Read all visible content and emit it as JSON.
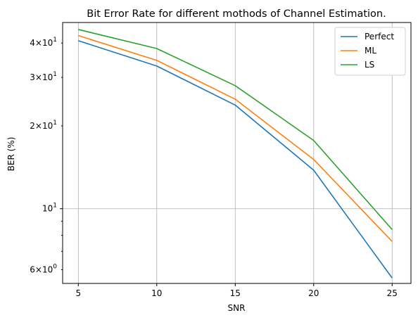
{
  "chart_data": {
    "type": "line",
    "title": "Bit Error Rate for different mothods of Channel Estimation.",
    "xlabel": "SNR",
    "ylabel": "BER (%)",
    "x": [
      5,
      10,
      15,
      20,
      25
    ],
    "xticks": [
      "5",
      "10",
      "15",
      "20",
      "25"
    ],
    "xlim": [
      4,
      26.2
    ],
    "ylim": [
      5.35,
      47.5
    ],
    "yscale": "log",
    "major_yticks": [
      {
        "value": 10,
        "label": "10^1"
      }
    ],
    "minor_yticks": [
      {
        "value": 6,
        "label": "6×10^0"
      },
      {
        "value": 7,
        "label": ""
      },
      {
        "value": 8,
        "label": ""
      },
      {
        "value": 9,
        "label": ""
      },
      {
        "value": 20,
        "label": "2×10^1"
      },
      {
        "value": 30,
        "label": "3×10^1"
      },
      {
        "value": 40,
        "label": "4×10^1"
      }
    ],
    "grid": true,
    "legend": "top-right",
    "series": [
      {
        "name": "Perfect",
        "color": "#1f77b4",
        "values": [
          40.8,
          33.0,
          23.8,
          13.8,
          5.6
        ]
      },
      {
        "name": "ML",
        "color": "#ff7f0e",
        "values": [
          42.6,
          34.6,
          25.0,
          15.1,
          7.6
        ]
      },
      {
        "name": "LS",
        "color": "#2ca02c",
        "values": [
          44.8,
          38.2,
          28.0,
          17.7,
          8.4
        ]
      }
    ]
  }
}
